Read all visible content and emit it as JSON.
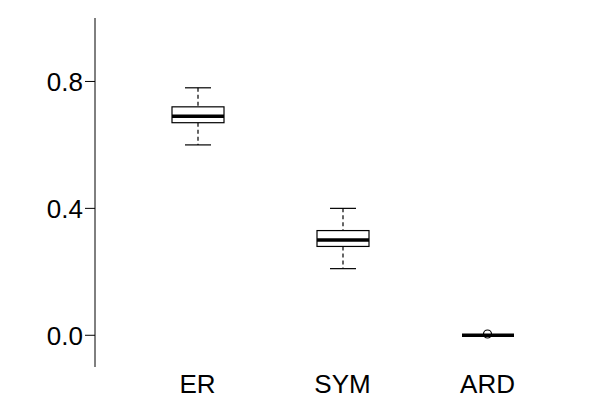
{
  "chart_data": {
    "type": "box",
    "categories": [
      "ER",
      "SYM",
      "ARD"
    ],
    "min": [
      0.6,
      0.21,
      0
    ],
    "q1": [
      0.67,
      0.28,
      0
    ],
    "median": [
      0.69,
      0.3,
      0
    ],
    "q3": [
      0.72,
      0.33,
      0
    ],
    "max": [
      0.78,
      0.4,
      0
    ],
    "outliers": [
      [],
      [],
      [
        0.004
      ]
    ],
    "color": "#000000",
    "ylim": [
      -0.1,
      1.0
    ],
    "yticks": [
      {
        "value": 0,
        "label": "0.0"
      },
      0.4,
      0.8
    ],
    "grid": false
  }
}
